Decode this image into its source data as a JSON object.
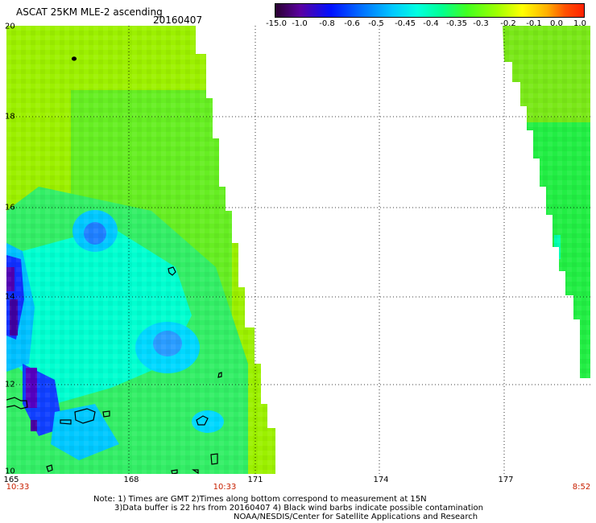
{
  "header": {
    "title": "ASCAT 25KM MLE-2 ascending",
    "date": "20160407"
  },
  "colorbar": {
    "labels": [
      "-15.0",
      "-1.0",
      "-0.8",
      "-0.6",
      "-0.5",
      "-0.45",
      "-0.4",
      "-0.35",
      "-0.3",
      "-0.2",
      "-0.1",
      "0.0",
      "1.0"
    ],
    "colors": [
      "#2a0030",
      "#5a00a0",
      "#0010ff",
      "#0070ff",
      "#00c8ff",
      "#00ffe0",
      "#00ff90",
      "#40ff20",
      "#a0ff00",
      "#ffff00",
      "#ffb000",
      "#ff5000",
      "#ff2000"
    ]
  },
  "axes": {
    "x_ticks": [
      "165",
      "168",
      "171",
      "174",
      "177"
    ],
    "y_ticks": [
      "20",
      "18",
      "16",
      "14",
      "12",
      "10"
    ]
  },
  "times": {
    "left": "10:33",
    "middle": "10:33",
    "right": "8:52"
  },
  "notes": [
    "Note: 1) Times are GMT 2)Times along bottom correspond to measurement at 15N",
    "3)Data buffer is 22 hrs from 20160407 4) Black wind barbs indicate possible contamination",
    "NOAA/NESDIS/Center for Satellite Applications and Research"
  ]
}
